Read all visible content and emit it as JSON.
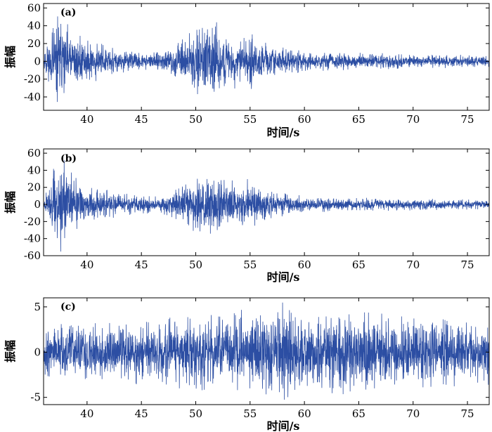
{
  "chart_data": [
    {
      "type": "line",
      "panel_label": "(a)",
      "xlabel": "时间/s",
      "ylabel": "振幅",
      "xlim": [
        36,
        77
      ],
      "ylim": [
        -55,
        65
      ],
      "xticks": [
        40,
        45,
        50,
        55,
        60,
        65,
        70,
        75
      ],
      "yticks": [
        -40,
        -20,
        0,
        20,
        40,
        60
      ],
      "grid": false,
      "color": "#2c4ea3",
      "envelope": [
        {
          "t": 36.0,
          "amp": 8
        },
        {
          "t": 37.0,
          "amp": 45
        },
        {
          "t": 37.6,
          "amp": 60
        },
        {
          "t": 38.5,
          "amp": 40
        },
        {
          "t": 40.0,
          "amp": 25
        },
        {
          "t": 43.0,
          "amp": 15
        },
        {
          "t": 46.0,
          "amp": 10
        },
        {
          "t": 48.0,
          "amp": 18
        },
        {
          "t": 50.0,
          "amp": 38
        },
        {
          "t": 51.5,
          "amp": 50
        },
        {
          "t": 53.0,
          "amp": 30
        },
        {
          "t": 55.0,
          "amp": 32
        },
        {
          "t": 57.0,
          "amp": 18
        },
        {
          "t": 60.0,
          "amp": 12
        },
        {
          "t": 65.0,
          "amp": 10
        },
        {
          "t": 70.0,
          "amp": 8
        },
        {
          "t": 77.0,
          "amp": 7
        }
      ]
    },
    {
      "type": "line",
      "panel_label": "(b)",
      "xlabel": "时间/s",
      "ylabel": "振幅",
      "xlim": [
        36,
        77
      ],
      "ylim": [
        -60,
        65
      ],
      "xticks": [
        40,
        45,
        50,
        55,
        60,
        65,
        70,
        75
      ],
      "yticks": [
        -60,
        -40,
        -20,
        0,
        20,
        40,
        60
      ],
      "grid": false,
      "color": "#2c4ea3",
      "envelope": [
        {
          "t": 36.0,
          "amp": 8
        },
        {
          "t": 37.0,
          "amp": 45
        },
        {
          "t": 37.6,
          "amp": 62
        },
        {
          "t": 38.5,
          "amp": 38
        },
        {
          "t": 40.0,
          "amp": 22
        },
        {
          "t": 43.0,
          "amp": 14
        },
        {
          "t": 46.0,
          "amp": 10
        },
        {
          "t": 48.0,
          "amp": 18
        },
        {
          "t": 50.0,
          "amp": 36
        },
        {
          "t": 51.5,
          "amp": 50
        },
        {
          "t": 53.0,
          "amp": 28
        },
        {
          "t": 55.0,
          "amp": 30
        },
        {
          "t": 57.0,
          "amp": 16
        },
        {
          "t": 60.0,
          "amp": 10
        },
        {
          "t": 65.0,
          "amp": 8
        },
        {
          "t": 70.0,
          "amp": 7
        },
        {
          "t": 77.0,
          "amp": 6
        }
      ]
    },
    {
      "type": "line",
      "panel_label": "(c)",
      "xlabel": "时间/s",
      "ylabel": "振幅",
      "xlim": [
        36,
        77
      ],
      "ylim": [
        -5.8,
        6
      ],
      "xticks": [
        40,
        45,
        50,
        55,
        60,
        65,
        70,
        75
      ],
      "yticks": [
        -5,
        0,
        5
      ],
      "grid": false,
      "color": "#2c4ea3",
      "envelope": [
        {
          "t": 36.0,
          "amp": 3.0
        },
        {
          "t": 40.0,
          "amp": 3.3
        },
        {
          "t": 45.0,
          "amp": 3.6
        },
        {
          "t": 50.0,
          "amp": 4.2
        },
        {
          "t": 55.0,
          "amp": 5.0
        },
        {
          "t": 58.0,
          "amp": 5.5
        },
        {
          "t": 62.0,
          "amp": 5.0
        },
        {
          "t": 66.0,
          "amp": 4.4
        },
        {
          "t": 70.0,
          "amp": 4.0
        },
        {
          "t": 77.0,
          "amp": 3.6
        }
      ]
    }
  ]
}
